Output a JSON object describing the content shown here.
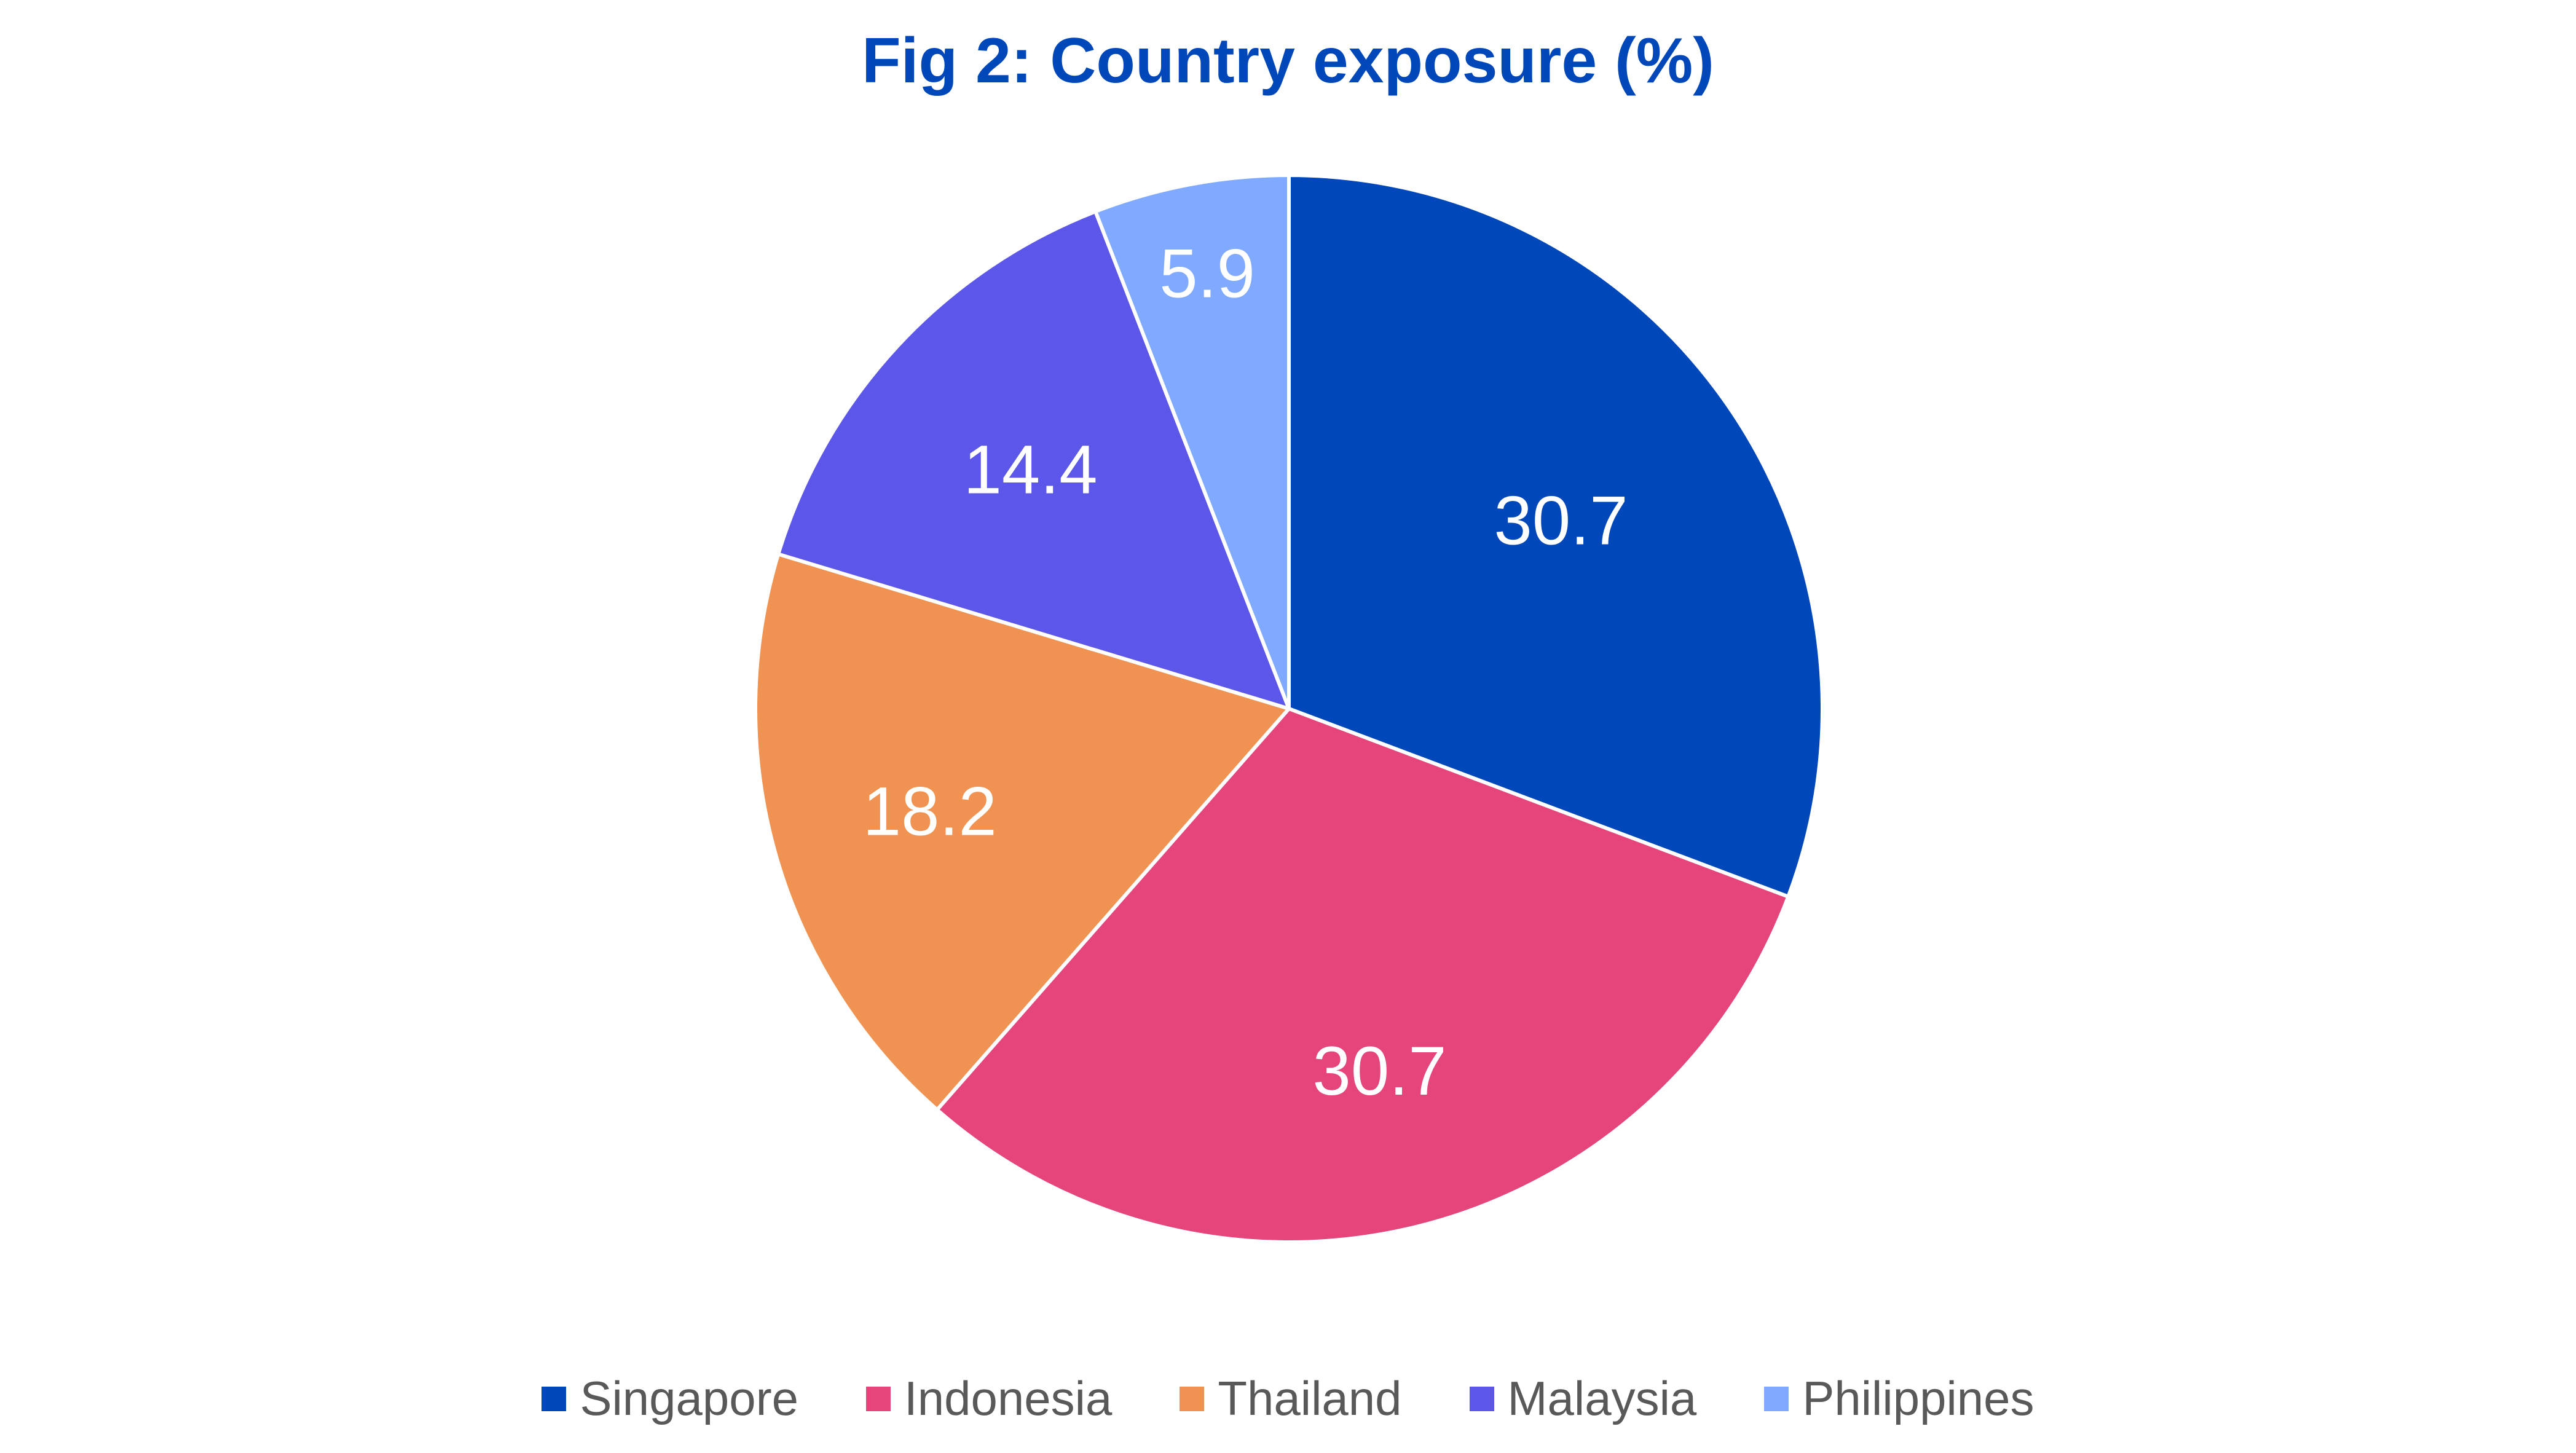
{
  "title": "Fig 2: Country exposure (%)",
  "colors": {
    "title": "#0047ba",
    "Singapore": "#0047ba",
    "Indonesia": "#e5457a",
    "Thailand": "#f09352",
    "Malaysia": "#5c57e8",
    "Philippines": "#7faaff",
    "legend_text": "#595959"
  },
  "legend": [
    {
      "label": "Singapore",
      "color": "#0047ba"
    },
    {
      "label": "Indonesia",
      "color": "#e5457a"
    },
    {
      "label": "Thailand",
      "color": "#f09352"
    },
    {
      "label": "Malaysia",
      "color": "#5c57e8"
    },
    {
      "label": "Philippines",
      "color": "#7faaff"
    }
  ],
  "labels": {
    "Singapore": "30.7",
    "Indonesia": "30.7",
    "Thailand": "18.2",
    "Malaysia": "14.4",
    "Philippines": "5.9"
  },
  "chart_data": {
    "type": "pie",
    "title": "Fig 2: Country exposure (%)",
    "categories": [
      "Singapore",
      "Indonesia",
      "Thailand",
      "Malaysia",
      "Philippines"
    ],
    "values": [
      30.7,
      30.7,
      18.2,
      14.4,
      5.9
    ],
    "colors": [
      "#0047ba",
      "#e5457a",
      "#f09352",
      "#5c57e8",
      "#7faaff"
    ],
    "start_angle": "12 o'clock, clockwise",
    "data_labels": true,
    "legend_position": "bottom"
  }
}
